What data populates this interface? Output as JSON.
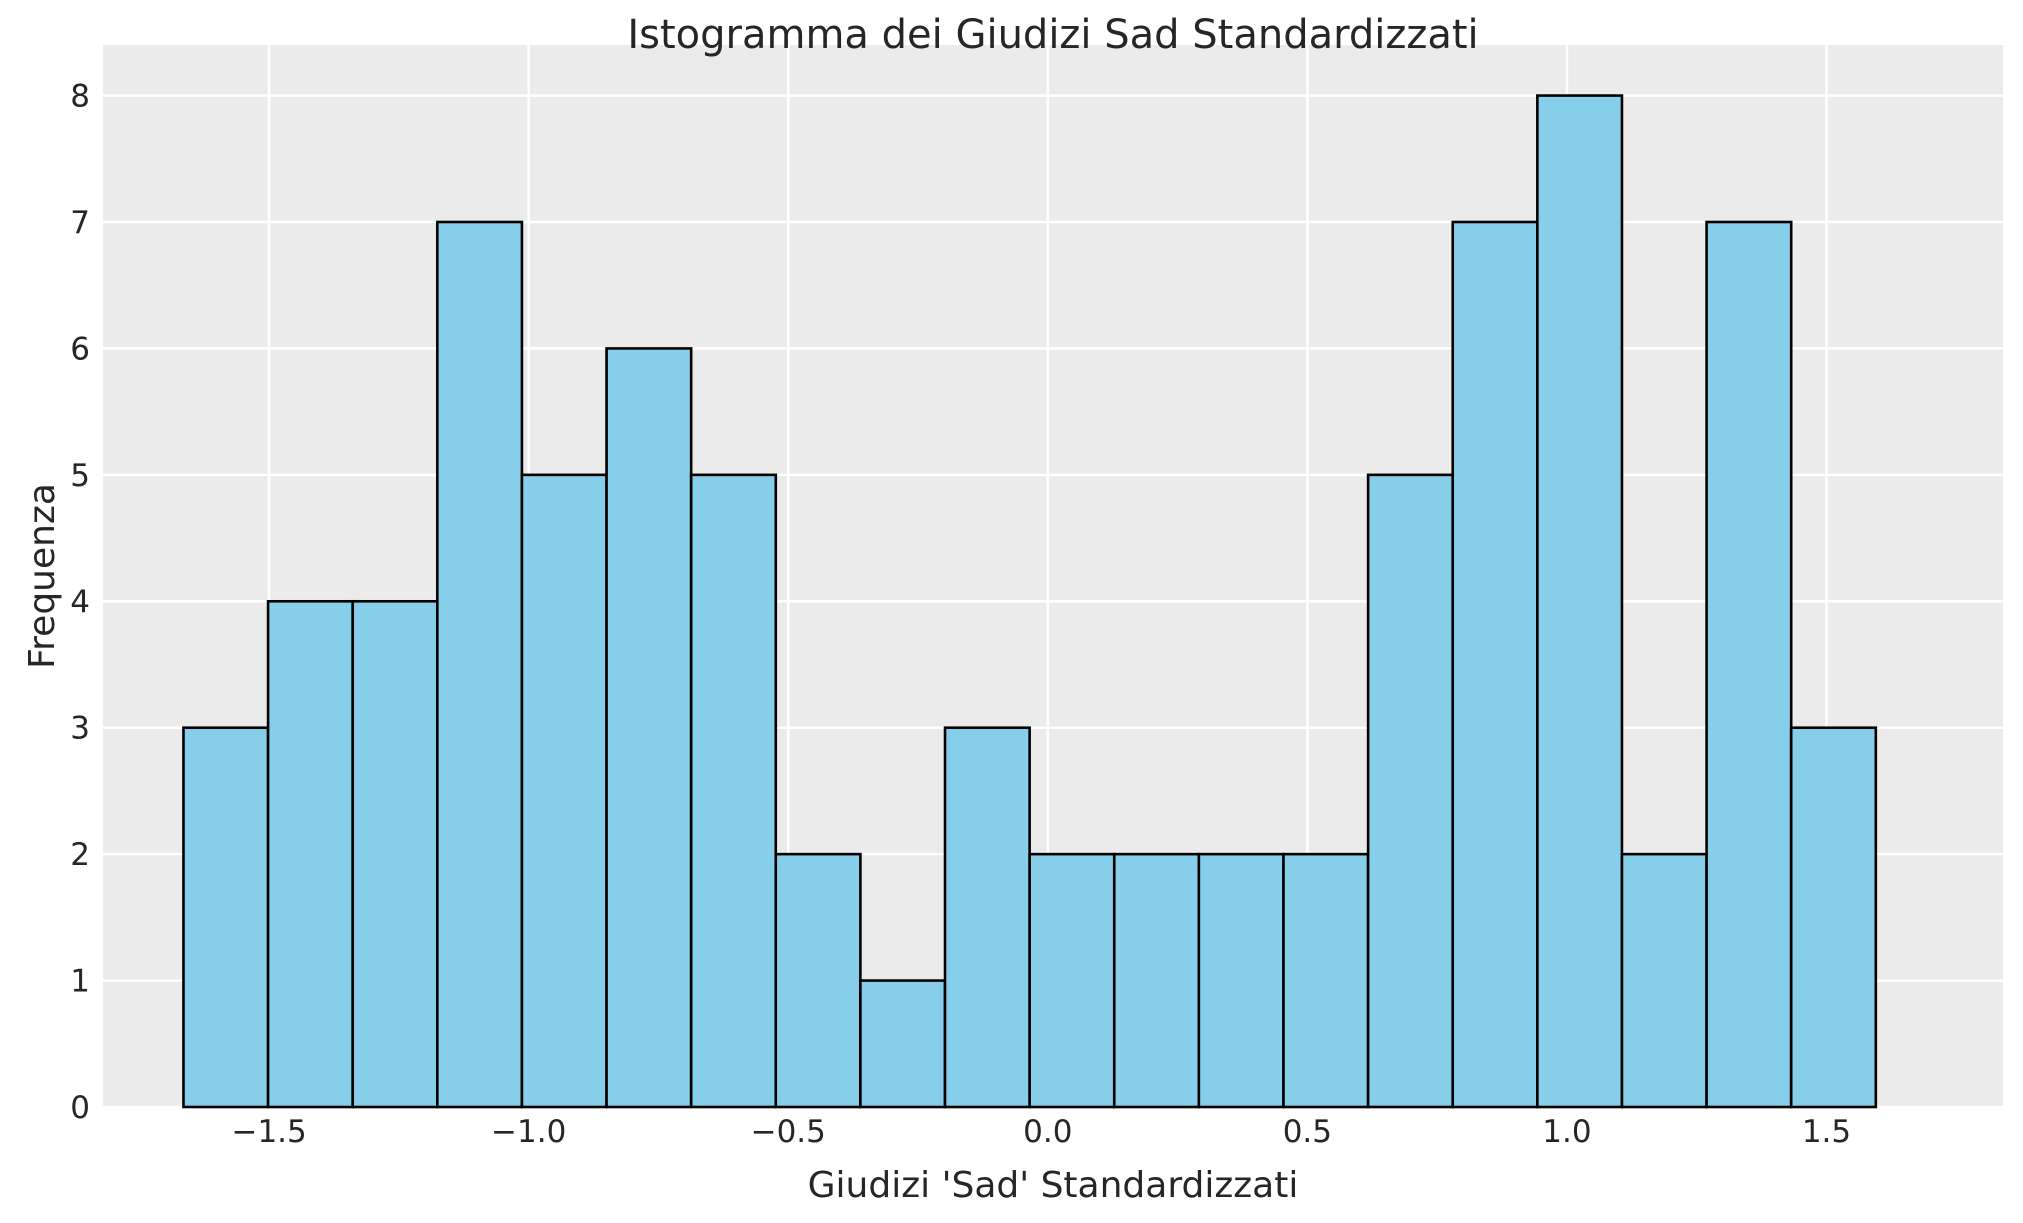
{
  "chart_data": {
    "type": "bar",
    "title": "Istogramma dei Giudizi Sad Standardizzati",
    "xlabel": "Giudizi 'Sad' Standardizzati",
    "ylabel": "Frequenza",
    "xlim": [
      -1.82,
      1.84
    ],
    "ylim": [
      0,
      8.4
    ],
    "bin_edges": [
      -1.665,
      -1.502,
      -1.339,
      -1.176,
      -1.013,
      -0.85,
      -0.687,
      -0.524,
      -0.361,
      -0.198,
      -0.035,
      0.128,
      0.291,
      0.454,
      0.617,
      0.78,
      0.943,
      1.106,
      1.269,
      1.432,
      1.595
    ],
    "values": [
      3,
      4,
      4,
      7,
      5,
      6,
      5,
      2,
      1,
      3,
      2,
      2,
      2,
      2,
      5,
      7,
      8,
      2,
      7,
      3
    ],
    "xticks": [
      -1.5,
      -1.0,
      -0.5,
      0.0,
      0.5,
      1.0,
      1.5
    ],
    "xtick_labels": [
      "−1.5",
      "−1.0",
      "−0.5",
      "0.0",
      "0.5",
      "1.0",
      "1.5"
    ],
    "yticks": [
      0,
      1,
      2,
      3,
      4,
      5,
      6,
      7,
      8
    ],
    "ytick_labels": [
      "0",
      "1",
      "2",
      "3",
      "4",
      "5",
      "6",
      "7",
      "8"
    ],
    "grid": true,
    "colors": {
      "bar_fill": "#87CEEB",
      "bar_edge": "#000000",
      "plot_background": "#EBEBEB",
      "grid": "#FFFFFF"
    }
  }
}
